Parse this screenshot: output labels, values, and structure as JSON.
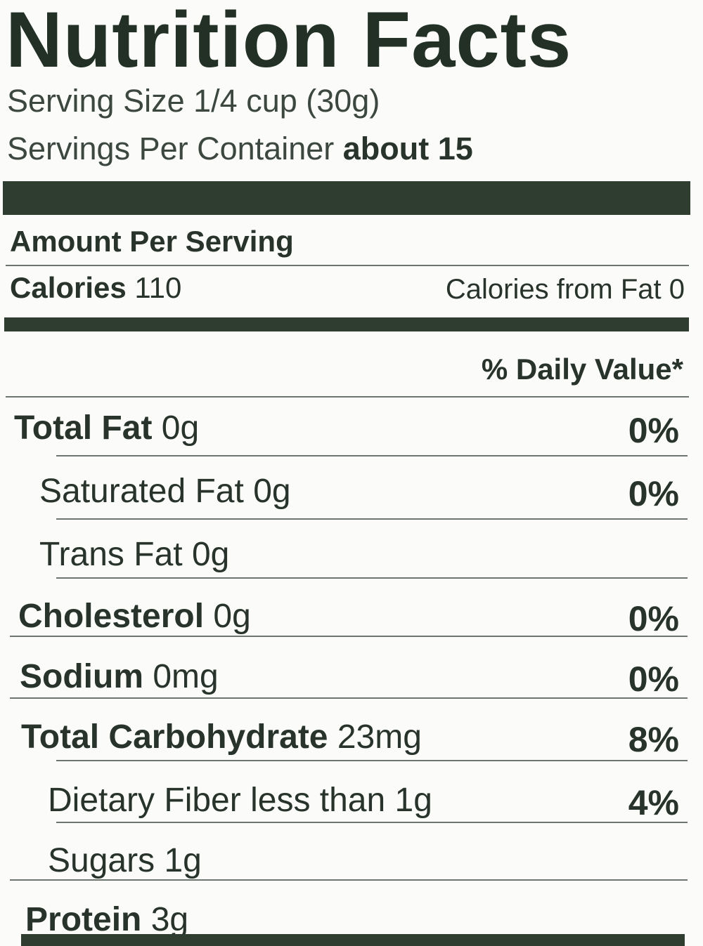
{
  "title": "Nutrition Facts",
  "serving_size": {
    "label": "Serving Size",
    "value": "1/4 cup (30g)"
  },
  "servings_per_container": {
    "label": "Servings Per Container",
    "value": "about 15"
  },
  "amount_per_serving": "Amount Per Serving",
  "calories": {
    "label": "Calories",
    "value": "110"
  },
  "calories_from_fat": {
    "label": "Calories from Fat",
    "value": "0"
  },
  "daily_value_header": "% Daily Value*",
  "rows": [
    {
      "name": "Total Fat",
      "amount": "0g",
      "dv": "0%"
    },
    {
      "name": "Saturated Fat",
      "amount": "0g",
      "dv": "0%"
    },
    {
      "name": "Trans Fat",
      "amount": "0g"
    },
    {
      "name": "Cholesterol",
      "amount": "0g",
      "dv": "0%"
    },
    {
      "name": "Sodium",
      "amount": "0mg",
      "dv": "0%"
    },
    {
      "name": "Total Carbohydrate",
      "amount": "23mg",
      "dv": "8%"
    },
    {
      "name": "Dietary Fiber",
      "amount": "less than 1g",
      "dv": "4%"
    },
    {
      "name": "Sugars",
      "amount": "1g"
    },
    {
      "name": "Protein",
      "amount": "3g"
    }
  ]
}
